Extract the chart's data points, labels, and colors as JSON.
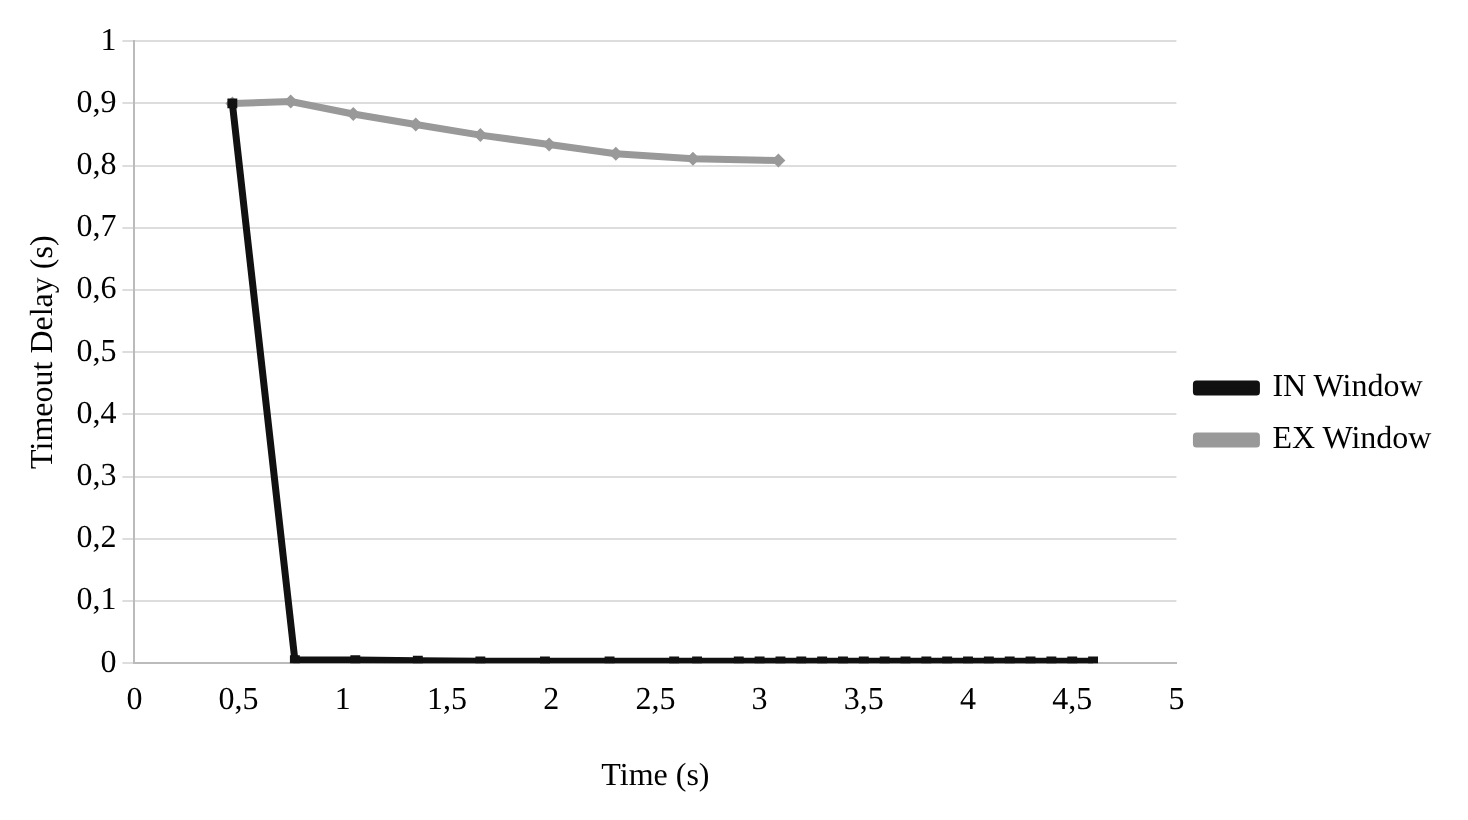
{
  "chart_data": {
    "type": "line",
    "xlabel": "Time (s)",
    "ylabel": "Timeout Delay (s)",
    "xlim": [
      0,
      5
    ],
    "xticks": [
      0,
      {
        "value": 0.5,
        "label": "0,5"
      },
      1,
      {
        "value": 1.5,
        "label": "1,5"
      },
      2,
      {
        "value": 2.5,
        "label": "2,5"
      },
      3,
      {
        "value": 3.5,
        "label": "3,5"
      },
      4,
      {
        "value": 4.5,
        "label": "4,5"
      },
      5
    ],
    "ylim": [
      0,
      1
    ],
    "yticks": [
      0,
      {
        "value": 0.1,
        "label": "0,1"
      },
      {
        "value": 0.2,
        "label": "0,2"
      },
      {
        "value": 0.3,
        "label": "0,3"
      },
      {
        "value": 0.4,
        "label": "0,4"
      },
      {
        "value": 0.5,
        "label": "0,5"
      },
      {
        "value": 0.6,
        "label": "0,6"
      },
      {
        "value": 0.7,
        "label": "0,7"
      },
      {
        "value": 0.8,
        "label": "0,8"
      },
      {
        "value": 0.9,
        "label": "0,9"
      },
      1
    ],
    "grid": "y",
    "legend": "right",
    "series": [
      {
        "name": "IN Window",
        "color": "#111111",
        "marker": "square",
        "x": [
          0.47,
          0.77,
          1.06,
          1.36,
          1.66,
          1.97,
          2.28,
          2.59,
          2.7,
          2.9,
          3.0,
          3.1,
          3.2,
          3.3,
          3.4,
          3.5,
          3.6,
          3.7,
          3.8,
          3.9,
          4.0,
          4.1,
          4.2,
          4.3,
          4.4,
          4.5,
          4.6
        ],
        "values": [
          0.9,
          0.005,
          0.005,
          0.004,
          0.003,
          0.003,
          0.003,
          0.003,
          0.003,
          0.003,
          0.003,
          0.003,
          0.003,
          0.003,
          0.003,
          0.003,
          0.003,
          0.003,
          0.003,
          0.003,
          0.003,
          0.003,
          0.003,
          0.003,
          0.003,
          0.003,
          0.003
        ]
      },
      {
        "name": "EX Window",
        "color": "#999999",
        "marker": "diamond",
        "x": [
          0.47,
          0.75,
          1.05,
          1.35,
          1.66,
          1.99,
          2.31,
          2.68,
          3.09
        ],
        "values": [
          0.9,
          0.903,
          0.883,
          0.866,
          0.849,
          0.834,
          0.819,
          0.811,
          0.808
        ]
      }
    ]
  }
}
